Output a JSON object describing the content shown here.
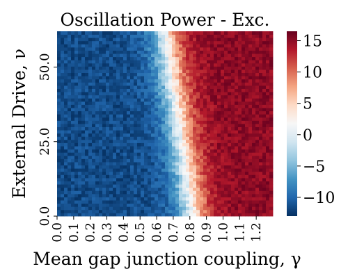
{
  "chart_data": {
    "type": "heatmap",
    "title": "Oscillation Power - Exc.",
    "xlabel": "Mean gap junction coupling, γ",
    "ylabel": "External Drive, ν",
    "x_ticks": [
      "0.0",
      "0.1",
      "0.2",
      "0.3",
      "0.4",
      "0.5",
      "0.6",
      "0.7",
      "0.8",
      "0.9",
      "1.0",
      "1.1",
      "1.2"
    ],
    "y_ticks": [
      "0.0",
      "25.0",
      "50.0"
    ],
    "x_range": [
      0.0,
      1.3
    ],
    "y_range": [
      0.0,
      62.0
    ],
    "colorbar": {
      "ticks": [
        15,
        10,
        5,
        0,
        -5,
        -10
      ],
      "tick_labels": [
        "15",
        "10",
        "5",
        "0",
        "−5",
        "−10"
      ],
      "range": [
        -13,
        16.5
      ],
      "colormap": "RdBu_r"
    },
    "grid": {
      "nx": 62,
      "ny": 58
    },
    "model": {
      "low_value": -11.5,
      "high_value": 15.0,
      "transition_x_at_bottom": 0.82,
      "transition_x_at_top": 0.65,
      "transition_width": 0.055,
      "noise": 2.2
    },
    "colors": {
      "min": "#053061",
      "mid": "#f7f7f7",
      "max": "#67001f"
    }
  }
}
